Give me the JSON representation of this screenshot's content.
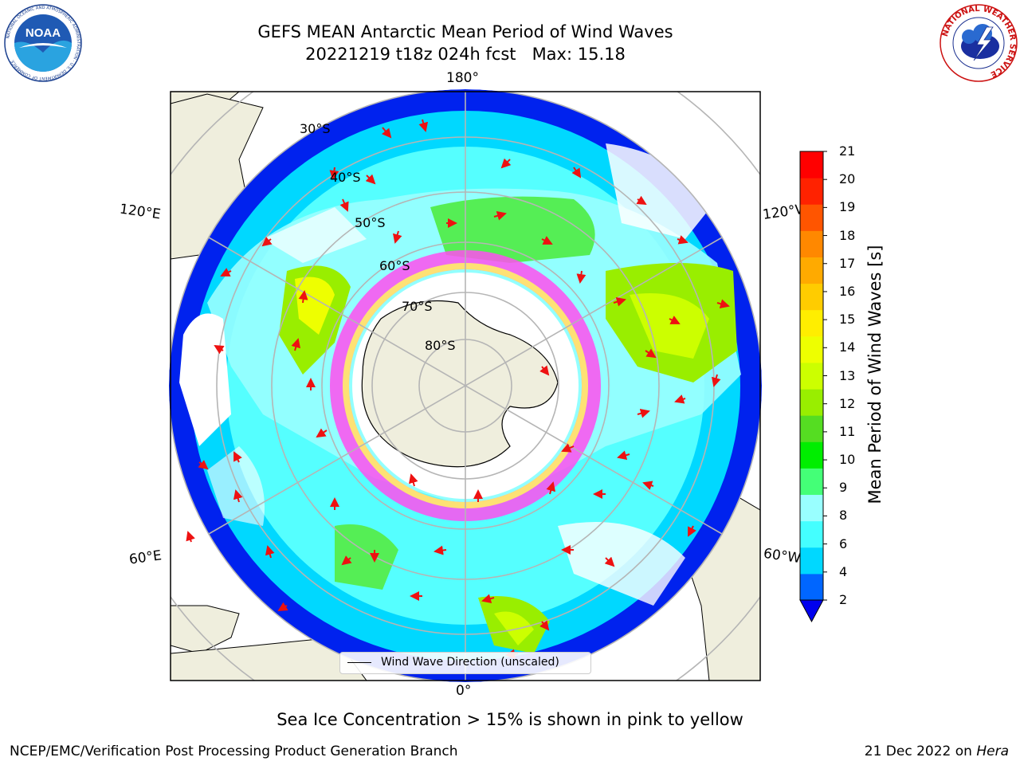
{
  "title": {
    "line1": "GEFS MEAN Antarctic Mean Period of Wind Waves",
    "line2": "20221219 t18z 024h fcst   Max: 15.18"
  },
  "logos": {
    "left": {
      "text": "NOAA",
      "ring_text": "NATIONAL OCEANIC AND ATMOSPHERIC ADMINISTRATION · U.S. DEPARTMENT OF COMMERCE"
    },
    "right": {
      "ring_text": "NATIONAL WEATHER SERVICE"
    }
  },
  "map": {
    "projection": "south-polar-stereographic",
    "lon_labels": {
      "top": "180°",
      "bottom": "0°",
      "upper_left": "120°E",
      "upper_right": "120°W",
      "lower_left": "60°E",
      "lower_right": "60°W"
    },
    "lat_labels": [
      "30°S",
      "40°S",
      "50°S",
      "60°S",
      "70°S",
      "80°S"
    ],
    "legend": "Wind Wave Direction (unscaled)",
    "colors": {
      "land": "#efeedd",
      "ice_pink": "#ff4ff0",
      "ice_yellow": "#ffee66",
      "arrow": "#ee1111"
    }
  },
  "colorbar": {
    "label": "Mean Period of Wind Waves [s]",
    "ticks": [
      "2",
      "4",
      "6",
      "8",
      "9",
      "10",
      "11",
      "12",
      "13",
      "14",
      "15",
      "16",
      "17",
      "18",
      "19",
      "20",
      "21"
    ],
    "colors": [
      "#0066ff",
      "#00d8ff",
      "#44ffff",
      "#99ffff",
      "#44ff77",
      "#00ee00",
      "#55dd22",
      "#99ee00",
      "#ccff00",
      "#eeff00",
      "#ffee00",
      "#ffcc00",
      "#ffaa00",
      "#ff8800",
      "#ff5500",
      "#ff2200",
      "#ff0000"
    ],
    "extend_color": "#0000ee"
  },
  "caption": "Sea Ice Concentration > 15% is shown in pink to yellow",
  "footer": {
    "left": "NCEP/EMC/Verification Post Processing Product Generation Branch",
    "right_date": "21 Dec 2022 on ",
    "right_machine": "Hera"
  }
}
